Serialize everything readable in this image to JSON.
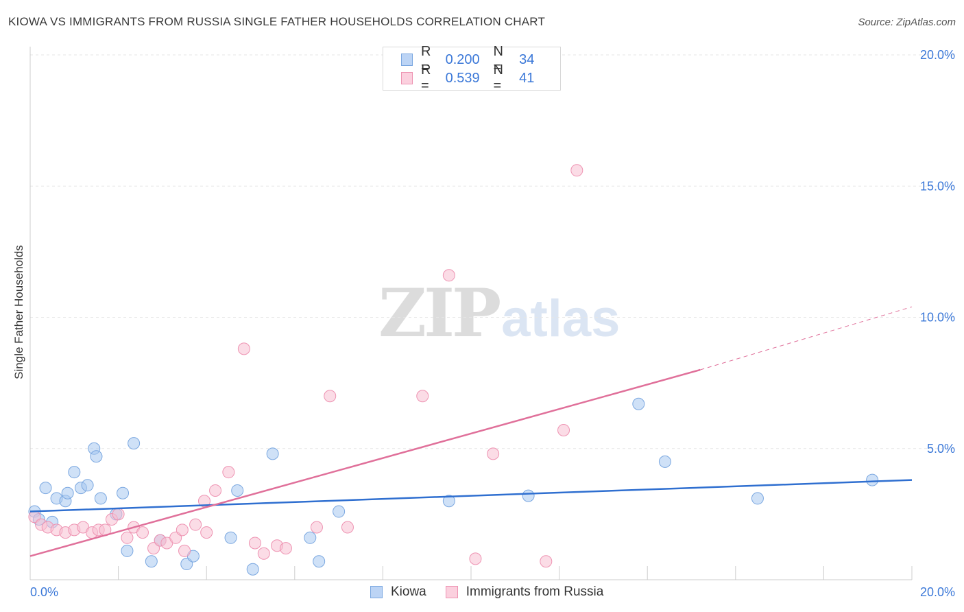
{
  "header": {
    "title": "KIOWA VS IMMIGRANTS FROM RUSSIA SINGLE FATHER HOUSEHOLDS CORRELATION CHART",
    "source": "Source: ZipAtlas.com"
  },
  "watermark": {
    "zip": "ZIP",
    "atlas": "atlas"
  },
  "legend_stats": [
    {
      "r_label": "R =",
      "r_value": "0.200",
      "n_label": "N =",
      "n_value": "34"
    },
    {
      "r_label": "R =",
      "r_value": "0.539",
      "n_label": "N =",
      "n_value": "41"
    }
  ],
  "chart_data": {
    "type": "scatter",
    "title": "KIOWA VS IMMIGRANTS FROM RUSSIA SINGLE FATHER HOUSEHOLDS CORRELATION CHART",
    "xlabel": "",
    "ylabel": "Single Father Households",
    "xlim": [
      0,
      20
    ],
    "ylim": [
      0,
      20
    ],
    "x_tick_labels": [
      "0.0%",
      "20.0%"
    ],
    "y_ticks": [
      5,
      10,
      15,
      20
    ],
    "y_tick_labels": [
      "5.0%",
      "10.0%",
      "15.0%",
      "20.0%"
    ],
    "grid": true,
    "legend_position": "bottom",
    "series": [
      {
        "name": "Kiowa",
        "color": "#a8c8f0",
        "edge_color": "#7aa7e0",
        "line_color": "#2f6fd0",
        "trend": {
          "x": [
            0,
            20
          ],
          "y": [
            2.6,
            3.8
          ]
        },
        "points": [
          [
            0.1,
            2.6
          ],
          [
            0.2,
            2.3
          ],
          [
            0.35,
            3.5
          ],
          [
            0.5,
            2.2
          ],
          [
            0.6,
            3.1
          ],
          [
            0.8,
            3.0
          ],
          [
            0.85,
            3.3
          ],
          [
            1.0,
            4.1
          ],
          [
            1.15,
            3.5
          ],
          [
            1.3,
            3.6
          ],
          [
            1.45,
            5.0
          ],
          [
            1.5,
            4.7
          ],
          [
            1.6,
            3.1
          ],
          [
            1.95,
            2.5
          ],
          [
            2.1,
            3.3
          ],
          [
            2.2,
            1.1
          ],
          [
            2.35,
            5.2
          ],
          [
            2.75,
            0.7
          ],
          [
            2.95,
            1.5
          ],
          [
            3.55,
            0.6
          ],
          [
            3.7,
            0.9
          ],
          [
            4.55,
            1.6
          ],
          [
            4.7,
            3.4
          ],
          [
            5.05,
            0.4
          ],
          [
            5.5,
            4.8
          ],
          [
            6.35,
            1.6
          ],
          [
            6.55,
            0.7
          ],
          [
            7.0,
            2.6
          ],
          [
            9.5,
            3.0
          ],
          [
            11.3,
            3.2
          ],
          [
            13.8,
            6.7
          ],
          [
            14.4,
            4.5
          ],
          [
            16.5,
            3.1
          ],
          [
            19.1,
            3.8
          ]
        ]
      },
      {
        "name": "Immigrants from Russia",
        "color": "#f8c0d2",
        "edge_color": "#ee93b2",
        "line_color": "#e0709a",
        "trend": {
          "x": [
            0,
            15.2
          ],
          "y": [
            0.9,
            8.0
          ]
        },
        "trend_extension": {
          "x": [
            15.2,
            20
          ],
          "y": [
            8.0,
            10.4
          ]
        },
        "points": [
          [
            0.1,
            2.4
          ],
          [
            0.25,
            2.1
          ],
          [
            0.4,
            2.0
          ],
          [
            0.6,
            1.9
          ],
          [
            0.8,
            1.8
          ],
          [
            1.0,
            1.9
          ],
          [
            1.2,
            2.0
          ],
          [
            1.4,
            1.8
          ],
          [
            1.55,
            1.9
          ],
          [
            1.7,
            1.9
          ],
          [
            1.85,
            2.3
          ],
          [
            2.0,
            2.5
          ],
          [
            2.2,
            1.6
          ],
          [
            2.35,
            2.0
          ],
          [
            2.55,
            1.8
          ],
          [
            2.8,
            1.2
          ],
          [
            2.95,
            1.5
          ],
          [
            3.1,
            1.4
          ],
          [
            3.3,
            1.6
          ],
          [
            3.45,
            1.9
          ],
          [
            3.5,
            1.1
          ],
          [
            3.75,
            2.1
          ],
          [
            3.95,
            3.0
          ],
          [
            4.0,
            1.8
          ],
          [
            4.2,
            3.4
          ],
          [
            4.5,
            4.1
          ],
          [
            4.85,
            8.8
          ],
          [
            5.1,
            1.4
          ],
          [
            5.3,
            1.0
          ],
          [
            5.6,
            1.3
          ],
          [
            5.8,
            1.2
          ],
          [
            6.5,
            2.0
          ],
          [
            6.8,
            7.0
          ],
          [
            7.2,
            2.0
          ],
          [
            8.9,
            7.0
          ],
          [
            9.5,
            11.6
          ],
          [
            10.1,
            0.8
          ],
          [
            10.5,
            4.8
          ],
          [
            11.7,
            0.7
          ],
          [
            12.1,
            5.7
          ],
          [
            12.4,
            15.6
          ]
        ]
      }
    ]
  }
}
